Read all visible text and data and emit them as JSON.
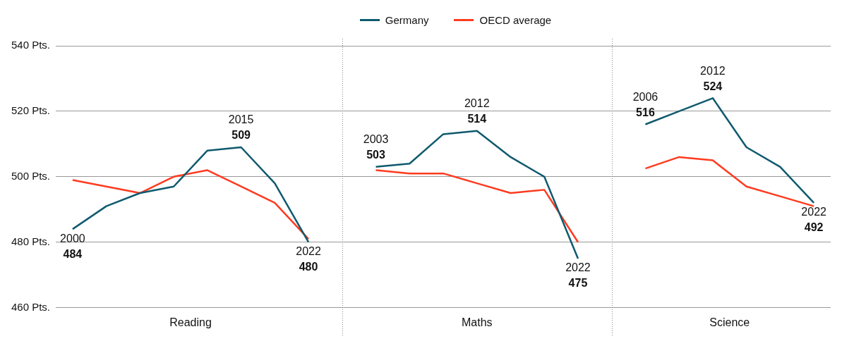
{
  "chart_data": {
    "type": "line",
    "categories": [
      null,
      null,
      null,
      null,
      null,
      null,
      null,
      null,
      null,
      null,
      null,
      null,
      null,
      null,
      null,
      null,
      null,
      null,
      null,
      null,
      null,
      null,
      null
    ],
    "ylim": [
      460,
      540
    ],
    "yticks": [
      {
        "value": 460,
        "label": "460 Pts."
      },
      {
        "value": 480,
        "label": "480 Pts."
      },
      {
        "value": 500,
        "label": "500 Pts."
      },
      {
        "value": 520,
        "label": "520 Pts."
      },
      {
        "value": 540,
        "label": "540 Pts."
      }
    ],
    "grid": "y",
    "legend": "top",
    "series": [
      {
        "name": "Germany",
        "color": "#0f5a6e",
        "values": [
          484,
          491,
          495,
          497,
          508,
          509,
          498,
          480,
          null,
          null,
          null,
          null,
          null,
          null,
          null,
          null,
          null,
          null,
          null,
          null,
          null,
          null,
          null
        ],
        "value_labels": [
          "484",
          null,
          null,
          null,
          null,
          "509",
          null,
          "480",
          null,
          null,
          null,
          null,
          null,
          null,
          null,
          null,
          null,
          null,
          null,
          null,
          null,
          null,
          null
        ]
      },
      {
        "name": "OECD average",
        "color": "#ff3b1f",
        "values": [
          499,
          497,
          495,
          500,
          502,
          497,
          492,
          481,
          null,
          null,
          null,
          null,
          null,
          null,
          null,
          null,
          null,
          null,
          null,
          null,
          null,
          null,
          null
        ]
      },
      {
        "color": "#0f5a6e",
        "values": [
          null,
          null,
          null,
          null,
          null,
          null,
          null,
          null,
          null,
          503,
          504,
          513,
          514,
          506,
          500,
          475,
          null,
          null,
          null,
          null,
          null,
          null,
          null
        ],
        "value_labels": [
          null,
          null,
          null,
          null,
          null,
          null,
          null,
          null,
          null,
          "503",
          null,
          null,
          "514",
          null,
          null,
          "475",
          null,
          null,
          null,
          null,
          null,
          null,
          null
        ]
      },
      {
        "color": "#ff3b1f",
        "values": [
          null,
          null,
          null,
          null,
          null,
          null,
          null,
          null,
          null,
          502,
          501,
          501,
          498,
          495,
          496,
          480,
          null,
          null,
          null,
          null,
          null,
          null,
          null
        ]
      },
      {
        "color": "#0f5a6e",
        "values": [
          null,
          null,
          null,
          null,
          null,
          null,
          null,
          null,
          null,
          null,
          null,
          null,
          null,
          null,
          null,
          null,
          null,
          516,
          520,
          524,
          509,
          503,
          492
        ],
        "value_labels": [
          null,
          null,
          null,
          null,
          null,
          null,
          null,
          null,
          null,
          null,
          null,
          null,
          null,
          null,
          null,
          null,
          null,
          "516",
          null,
          "524",
          null,
          null,
          "492"
        ]
      },
      {
        "color": "#ff3b1f",
        "values": [
          null,
          null,
          null,
          null,
          null,
          null,
          null,
          null,
          null,
          null,
          null,
          null,
          null,
          null,
          null,
          null,
          null,
          502.5,
          506,
          505,
          497,
          494,
          491
        ]
      }
    ],
    "annotations": [
      "Reading",
      "Maths",
      "Science",
      {
        "text": "2000",
        "y": 484
      },
      {
        "text": "2015",
        "y": 509
      },
      {
        "text": "2022",
        "y": 480
      },
      {
        "text": "2003",
        "y": 503
      },
      {
        "text": "2012",
        "y": 514
      },
      {
        "text": "2022",
        "y": 475
      },
      {
        "text": "2006",
        "y": 516
      },
      {
        "text": "2012",
        "y": 524
      },
      {
        "text": "2022",
        "y": 492
      }
    ]
  }
}
